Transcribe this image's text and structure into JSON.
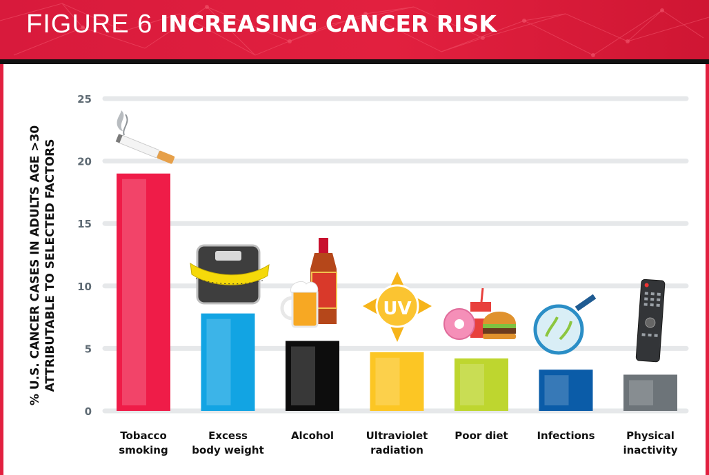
{
  "header": {
    "figure_label": "FIGURE 6",
    "title": "INCREASING CANCER RISK"
  },
  "colors": {
    "header": "#e2203f",
    "grid": "#e6e8ea",
    "tick": "#5f6b74",
    "bars": [
      "#ef1c48",
      "#12a4e3",
      "#0d0d0d",
      "#fcc624",
      "#bed62f",
      "#0b5ca8",
      "#6d7479"
    ]
  },
  "chart_data": {
    "type": "bar",
    "title": "INCREASING CANCER RISK",
    "xlabel": "",
    "ylabel_lines": [
      "% U.S. CANCER CASES IN ADULTS AGE >30",
      "ATTRIBUTABLE TO SELECTED FACTORS"
    ],
    "categories": [
      [
        "Tobacco",
        "smoking"
      ],
      [
        "Excess",
        "body weight"
      ],
      [
        "Alcohol"
      ],
      [
        "Ultraviolet",
        "radiation"
      ],
      [
        "Poor diet"
      ],
      [
        "Infections"
      ],
      [
        "Physical",
        "inactivity"
      ]
    ],
    "values": [
      19.0,
      7.8,
      5.6,
      4.7,
      4.2,
      3.3,
      2.9
    ],
    "ylim": [
      0,
      25
    ],
    "yticks": [
      0,
      5,
      10,
      15,
      20,
      25
    ],
    "grid": true,
    "legend": "none"
  }
}
